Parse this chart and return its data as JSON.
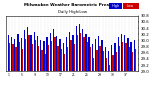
{
  "title": "Milwaukee Weather Barometric Pressure",
  "subtitle": "Daily High/Low",
  "bar_width": 0.4,
  "background_color": "#ffffff",
  "high_color": "#0000cc",
  "low_color": "#cc0000",
  "legend_high_label": "High",
  "legend_low_label": "Low",
  "ylim": [
    29.0,
    30.8
  ],
  "yticks": [
    29.0,
    29.2,
    29.4,
    29.6,
    29.8,
    30.0,
    30.2,
    30.4,
    30.6,
    30.8
  ],
  "highs": [
    30.18,
    30.12,
    30.05,
    30.22,
    30.08,
    30.35,
    30.42,
    30.18,
    30.28,
    30.15,
    30.02,
    29.98,
    30.12,
    30.25,
    30.38,
    30.15,
    30.05,
    29.92,
    30.1,
    30.28,
    30.18,
    30.45,
    30.52,
    30.38,
    30.22,
    30.12,
    29.88,
    30.05,
    30.15,
    30.02,
    29.78,
    29.65,
    29.85,
    29.92,
    30.12,
    30.22,
    30.18,
    30.08,
    29.95,
    30.02
  ],
  "lows": [
    29.92,
    29.88,
    29.78,
    29.95,
    29.72,
    30.05,
    30.18,
    29.88,
    30.02,
    29.82,
    29.68,
    29.55,
    29.85,
    29.98,
    30.12,
    29.82,
    29.72,
    29.55,
    29.78,
    30.02,
    29.88,
    30.18,
    30.25,
    30.12,
    29.95,
    29.78,
    29.42,
    29.68,
    29.82,
    29.65,
    29.42,
    29.22,
    29.52,
    29.62,
    29.82,
    29.95,
    29.92,
    29.78,
    29.62,
    29.72
  ],
  "xlabels": [
    "1",
    "2",
    "3",
    "4",
    "5",
    "6",
    "7",
    "8",
    "9",
    "10",
    "11",
    "12",
    "13",
    "14",
    "15",
    "16",
    "17",
    "18",
    "19",
    "20",
    "21",
    "22",
    "23",
    "24",
    "25",
    "26",
    "27",
    "28",
    "29",
    "30",
    "31",
    "32",
    "33",
    "34",
    "35",
    "36",
    "37",
    "38",
    "39",
    "40"
  ]
}
